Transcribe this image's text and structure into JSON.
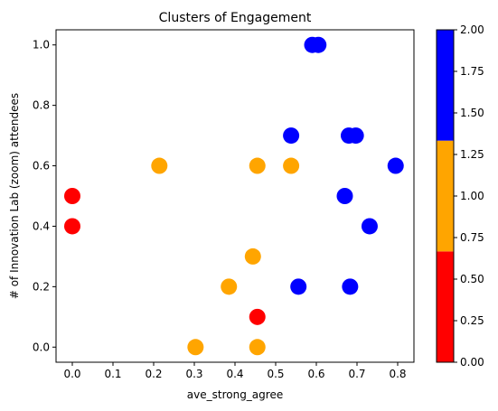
{
  "chart_data": {
    "type": "scatter",
    "title": "Clusters of Engagement",
    "xlabel": "ave_strong_agree",
    "ylabel": "# of Innovation Lab (zoom) attendees",
    "xlim": [
      -0.04,
      0.84
    ],
    "ylim": [
      -0.05,
      1.05
    ],
    "x_ticks": [
      0.0,
      0.1,
      0.2,
      0.3,
      0.4,
      0.5,
      0.6,
      0.7,
      0.8
    ],
    "x_tick_labels": [
      "0.0",
      "0.1",
      "0.2",
      "0.3",
      "0.4",
      "0.5",
      "0.6",
      "0.7",
      "0.8"
    ],
    "y_ticks": [
      0.0,
      0.2,
      0.4,
      0.6,
      0.8,
      1.0
    ],
    "y_tick_labels": [
      "0.0",
      "0.2",
      "0.4",
      "0.6",
      "0.8",
      "1.0"
    ],
    "grid": false,
    "legend": "none",
    "points": [
      {
        "x": 0.0,
        "y": 0.5,
        "cluster": 0
      },
      {
        "x": 0.0,
        "y": 0.4,
        "cluster": 0
      },
      {
        "x": 0.455,
        "y": 0.1,
        "cluster": 0
      },
      {
        "x": 0.214,
        "y": 0.6,
        "cluster": 1
      },
      {
        "x": 0.455,
        "y": 0.6,
        "cluster": 1
      },
      {
        "x": 0.538,
        "y": 0.6,
        "cluster": 1
      },
      {
        "x": 0.444,
        "y": 0.3,
        "cluster": 1
      },
      {
        "x": 0.385,
        "y": 0.2,
        "cluster": 1
      },
      {
        "x": 0.303,
        "y": 0.0,
        "cluster": 1
      },
      {
        "x": 0.455,
        "y": 0.0,
        "cluster": 1
      },
      {
        "x": 0.59,
        "y": 1.0,
        "cluster": 2
      },
      {
        "x": 0.605,
        "y": 1.0,
        "cluster": 2
      },
      {
        "x": 0.538,
        "y": 0.7,
        "cluster": 2
      },
      {
        "x": 0.68,
        "y": 0.7,
        "cluster": 2
      },
      {
        "x": 0.697,
        "y": 0.7,
        "cluster": 2
      },
      {
        "x": 0.795,
        "y": 0.6,
        "cluster": 2
      },
      {
        "x": 0.67,
        "y": 0.5,
        "cluster": 2
      },
      {
        "x": 0.731,
        "y": 0.4,
        "cluster": 2
      },
      {
        "x": 0.556,
        "y": 0.2,
        "cluster": 2
      },
      {
        "x": 0.683,
        "y": 0.2,
        "cluster": 2
      }
    ],
    "colorbar": {
      "range": [
        0.0,
        2.0
      ],
      "ticks": [
        0.0,
        0.25,
        0.5,
        0.75,
        1.0,
        1.25,
        1.5,
        1.75,
        2.0
      ],
      "tick_labels": [
        "0.00",
        "0.25",
        "0.50",
        "0.75",
        "1.00",
        "1.25",
        "1.50",
        "1.75",
        "2.00"
      ],
      "colors": [
        "#ff0000",
        "#ffa500",
        "#0000ff"
      ]
    }
  }
}
